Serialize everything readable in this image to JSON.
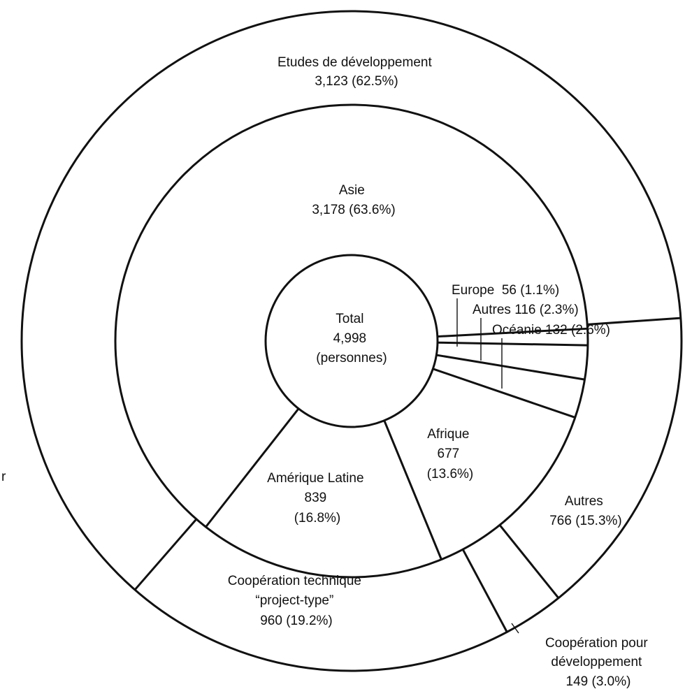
{
  "chart_data": {
    "type": "pie",
    "center_label": [
      "Total",
      "4,998",
      "(personnes)"
    ],
    "rings": [
      {
        "name": "",
        "slices": [
          {
            "label": "Asie",
            "value": 3178,
            "value_text": "3,178 (63.6%)",
            "percent": 63.6
          },
          {
            "label": "Europe",
            "value": 56,
            "value_text": "56 (1.1%)",
            "percent": 1.1
          },
          {
            "label": "Autres",
            "value": 116,
            "value_text": "116 (2.3%)",
            "percent": 2.3
          },
          {
            "label": "Océanie",
            "value": 132,
            "value_text": "132 (2.6%)",
            "percent": 2.6
          },
          {
            "label": "Afrique",
            "value": 677,
            "value_text": "677 (13.6%)",
            "percent": 13.6
          },
          {
            "label": "Amérique Latine",
            "value": 839,
            "value_text": "839 (16.8%)",
            "percent": 16.8
          }
        ]
      },
      {
        "name": "",
        "slices": [
          {
            "label": "Etudes de développement",
            "value": 3123,
            "value_text": "3,123 (62.5%)",
            "percent": 62.5
          },
          {
            "label": "Autres",
            "value": 766,
            "value_text": "766 (15.3%)",
            "percent": 15.3
          },
          {
            "label": "Coopération pour développement",
            "value": 149,
            "value_text": "149 (3.0%)",
            "percent": 3.0
          },
          {
            "label": "Coopération technique \"project-type\"",
            "value": 960,
            "value_text": "960 (19.2%)",
            "percent": 19.2
          }
        ]
      }
    ],
    "labels": {
      "etudes": [
        "Etudes de développement",
        "3,123 (62.5%)"
      ],
      "asie": [
        "Asie",
        "3,178 (63.6%)"
      ],
      "europe": "Europe  56 (1.1%)",
      "autres_region": "Autres 116 (2.3%)",
      "oceanie": "Océanie 132 (2.6%)",
      "afrique": [
        "Afrique",
        "677",
        "(13.6%)"
      ],
      "amerique": [
        "Amérique Latine",
        "839",
        "(16.8%)"
      ],
      "autres_type": [
        "Autres",
        "766 (15.3%)"
      ],
      "coop_tech": [
        "Coopération technique",
        "“project-type”",
        "960 (19.2%)"
      ],
      "coop_dev": [
        "Coopération pour",
        "développement",
        "149 (3.0%)"
      ],
      "edge_fragment": "r"
    }
  }
}
